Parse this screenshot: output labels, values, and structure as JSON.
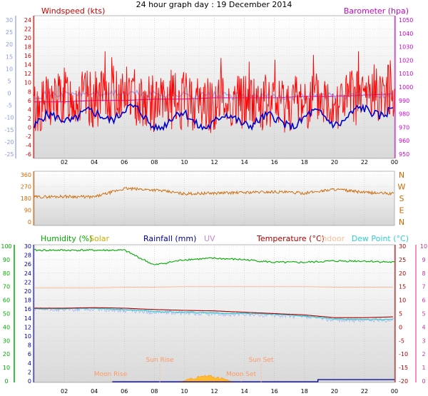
{
  "title": "24 hour graph day : 19 December 2014",
  "colors": {
    "windspeed": "#cc0000",
    "windgust": "#ff0000",
    "windavg": "#0000cc",
    "barometer": "#cc00cc",
    "barometer_axis": "#cc00cc",
    "wind_left_axis": "#8899ee",
    "wind_right_axis": "#cc0000",
    "wind_extra_line": "#99aaee",
    "direction": "#cc6600",
    "humidity": "#00aa00",
    "solar": "#ccaa00",
    "rainfall": "#000099",
    "uv": "#cc88cc",
    "temperature": "#aa0000",
    "indoor": "#ffbb99",
    "dewpoint": "#33cccc",
    "temp_extra": "#aabbee"
  },
  "x_ticks": [
    "02",
    "04",
    "06",
    "08",
    "10",
    "12",
    "14",
    "16",
    "18",
    "20",
    "22",
    "00"
  ],
  "panel1": {
    "left_label": "Windspeed (kts)",
    "right_label": "Barometer (hpa)",
    "left_outer_ticks": [
      "30",
      "25",
      "20",
      "15",
      "10",
      "5",
      "0",
      "-5",
      "-10",
      "-15",
      "-20",
      "-25"
    ],
    "left_inner_ticks": [
      "24",
      "22",
      "20",
      "18",
      "16",
      "14",
      "12",
      "10",
      "8",
      "6",
      "4",
      "2",
      "0",
      "-2",
      "-4",
      "-6"
    ],
    "left_inner_ticks_mid": [
      "12",
      "10",
      "8",
      "6",
      "4",
      "2"
    ],
    "right_ticks": [
      "1050",
      "1040",
      "1030",
      "1020",
      "1010",
      "1000",
      "990",
      "980",
      "970",
      "960",
      "950"
    ]
  },
  "panel2": {
    "left_ticks": [
      "360",
      "270",
      "180",
      "90",
      "0"
    ],
    "right_letters": [
      "N",
      "W",
      "S",
      "E",
      "N"
    ]
  },
  "panel3": {
    "labels": {
      "humidity": "Humidity (%)",
      "solar": "Solar",
      "rainfall": "Rainfall (mm)",
      "uv": "UV",
      "temperature": "Temperature (°C)",
      "indoor": "Indoor",
      "dewpoint": "Dew Point (°C)"
    },
    "humidity_ticks": [
      "100",
      "90",
      "80",
      "70",
      "60",
      "50",
      "40",
      "30",
      "20",
      "10",
      "0"
    ],
    "rain_ticks": [
      "30",
      "28",
      "26",
      "24",
      "22",
      "20",
      "18",
      "16",
      "14",
      "12",
      "10",
      "8",
      "6",
      "4",
      "2",
      "0"
    ],
    "temp_ticks": [
      "30",
      "25",
      "20",
      "15",
      "10",
      "5",
      "0",
      "-5",
      "-10",
      "-15",
      "-20"
    ],
    "uv_ticks": [
      "10",
      "9",
      "8",
      "7",
      "6",
      "5",
      "4",
      "3",
      "2",
      "1",
      "0"
    ],
    "annotations": {
      "sunrise": "Sun Rise",
      "sunset": "Sun Set",
      "moonrise": "Moon Rise",
      "moonset": "Moon Set",
      "moonset_axis": "Moon Set"
    }
  },
  "chart_data": [
    {
      "type": "line",
      "title": "24 hour graph day : 19 December 2014",
      "ylabel": "Windspeed (kts)",
      "y2label": "Barometer (hpa)",
      "x": [
        "00",
        "02",
        "04",
        "06",
        "08",
        "10",
        "12",
        "14",
        "16",
        "18",
        "20",
        "22",
        "00"
      ],
      "series": [
        {
          "name": "Windspeed (kts)",
          "values": [
            6,
            9,
            8,
            10,
            7,
            8,
            7,
            8,
            7,
            8,
            8,
            9,
            11
          ]
        },
        {
          "name": "Barometer (hpa)",
          "values": [
            989,
            989,
            990,
            990,
            991,
            991,
            992,
            992,
            992,
            993,
            993,
            994,
            995
          ]
        }
      ],
      "ylim": [
        -6,
        24
      ],
      "y2lim": [
        950,
        1050
      ]
    },
    {
      "type": "line",
      "x": [
        "00",
        "02",
        "04",
        "06",
        "08",
        "10",
        "12",
        "14",
        "16",
        "18",
        "20",
        "22",
        "00"
      ],
      "series": [
        {
          "values": [
            190,
            195,
            190,
            255,
            245,
            215,
            220,
            225,
            230,
            220,
            250,
            225,
            215
          ]
        }
      ],
      "ylim": [
        0,
        360
      ]
    },
    {
      "type": "line",
      "x": [
        "00",
        "02",
        "04",
        "06",
        "08",
        "10",
        "12",
        "14",
        "16",
        "18",
        "20",
        "22",
        "00"
      ],
      "series": [
        {
          "name": "Humidity (%)",
          "values": [
            97,
            97,
            97,
            97,
            86,
            90,
            91,
            90,
            88,
            88,
            89,
            89,
            88
          ]
        },
        {
          "name": "Temperature (°C)",
          "values": [
            7.0,
            7.0,
            7.2,
            7.0,
            6.5,
            6.2,
            6.0,
            5.5,
            5.0,
            4.5,
            3.5,
            3.5,
            3.8
          ]
        },
        {
          "name": "Dew Point (°C)",
          "values": [
            6.8,
            6.8,
            7.0,
            6.5,
            5.8,
            5.5,
            5.2,
            5.0,
            4.8,
            4.0,
            3.0,
            2.8,
            2.9
          ]
        },
        {
          "name": "Indoor",
          "values": [
            14.5,
            14.5,
            14.5,
            14.8,
            14.8,
            15.0,
            15.0,
            15.0,
            15.0,
            15.0,
            14.8,
            14.8,
            14.8
          ]
        },
        {
          "name": "Solar",
          "values": [
            0,
            0,
            0,
            0,
            0,
            5,
            18,
            2,
            0,
            0,
            0,
            0,
            0
          ]
        },
        {
          "name": "Rainfall (mm)",
          "values": [
            0,
            0,
            0,
            0,
            0,
            0,
            0,
            0,
            0,
            0.5,
            0.5,
            0.5,
            0.5
          ]
        }
      ],
      "ylim": [
        0,
        100
      ]
    }
  ]
}
